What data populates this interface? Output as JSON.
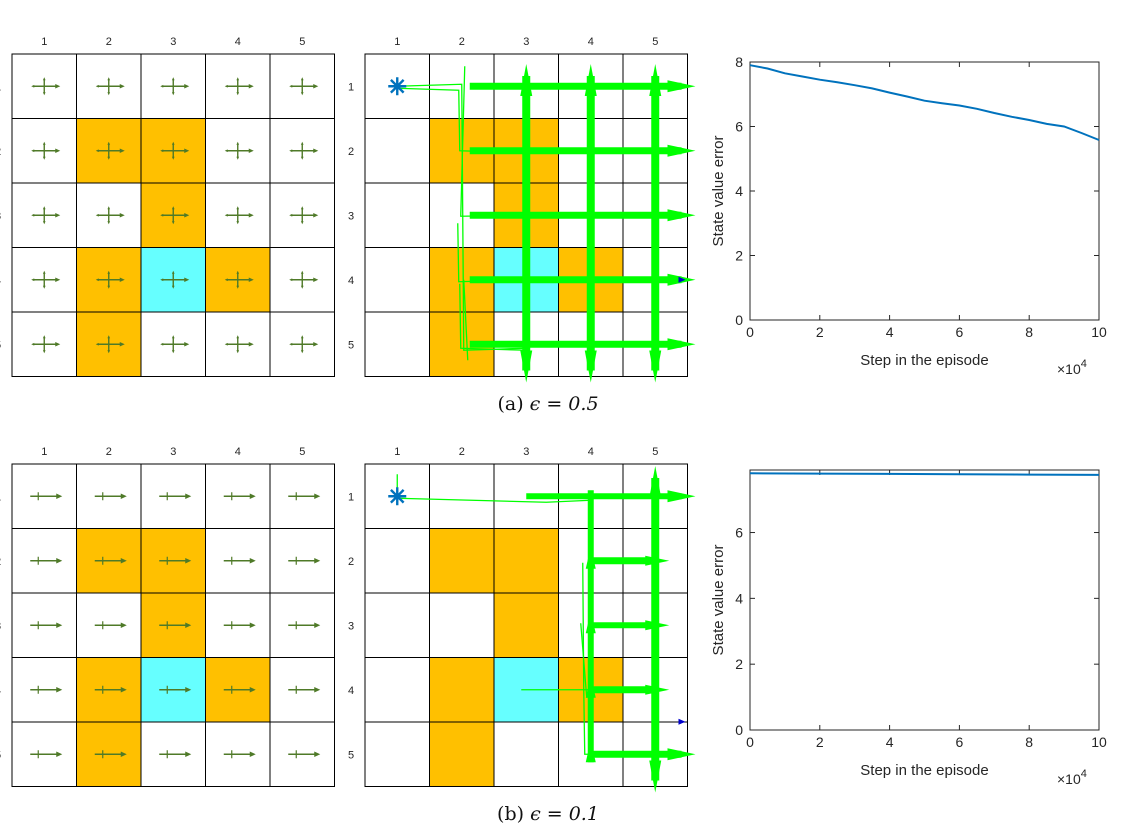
{
  "colors": {
    "forbidden": "#ffc000",
    "target": "#66ffff",
    "free": "#ffffff",
    "grid_line": "#000000",
    "policy_arrow": "#4f7a28",
    "trajectory": "#00ff00",
    "curve": "#0072bd",
    "start_marker": "#0072bd"
  },
  "grid": {
    "size": 5,
    "col_labels": [
      "1",
      "2",
      "3",
      "4",
      "5"
    ],
    "row_labels": [
      "1",
      "2",
      "3",
      "4",
      "5"
    ],
    "forbidden_cells": [
      [
        2,
        2
      ],
      [
        2,
        3
      ],
      [
        3,
        3
      ],
      [
        4,
        2
      ],
      [
        4,
        4
      ],
      [
        5,
        2
      ]
    ],
    "target_cell": [
      4,
      3
    ],
    "start_cell": [
      1,
      1
    ]
  },
  "panels": [
    {
      "caption_prefix": "(a) ",
      "caption_math": "ϵ = 0.5",
      "policy": "all cells: arrows in four directions, longest to the right",
      "chart_data": {
        "type": "line",
        "xlabel": "Step in the episode",
        "ylabel": "State value error",
        "x_exponent_base": "×10",
        "x_exponent_power": "4",
        "xlim": [
          0,
          10
        ],
        "ylim": [
          0,
          8
        ],
        "xticks": [
          "0",
          "2",
          "4",
          "6",
          "8",
          "10"
        ],
        "yticks": [
          "0",
          "2",
          "4",
          "6",
          "8"
        ],
        "x": [
          0,
          0.5,
          1,
          1.5,
          2,
          2.5,
          3,
          3.5,
          4,
          4.5,
          5,
          5.5,
          6,
          6.5,
          7,
          7.5,
          8,
          8.5,
          9,
          9.5,
          10
        ],
        "y": [
          7.9,
          7.8,
          7.65,
          7.55,
          7.45,
          7.37,
          7.28,
          7.18,
          7.05,
          6.93,
          6.8,
          6.72,
          6.65,
          6.55,
          6.42,
          6.3,
          6.2,
          6.08,
          6.0,
          5.8,
          5.58
        ]
      }
    },
    {
      "caption_prefix": "(b) ",
      "caption_math": "ϵ = 0.1",
      "policy": "all cells: mostly right arrows",
      "chart_data": {
        "type": "line",
        "xlabel": "Step in the episode",
        "ylabel": "State value error",
        "x_exponent_base": "×10",
        "x_exponent_power": "4",
        "xlim": [
          0,
          10
        ],
        "ylim": [
          0,
          7.9
        ],
        "xticks": [
          "0",
          "2",
          "4",
          "6",
          "8",
          "10"
        ],
        "yticks": [
          "0",
          "2",
          "4",
          "6"
        ],
        "x": [
          0,
          2,
          4,
          6,
          8,
          10
        ],
        "y": [
          7.8,
          7.79,
          7.78,
          7.77,
          7.76,
          7.75
        ]
      }
    }
  ]
}
